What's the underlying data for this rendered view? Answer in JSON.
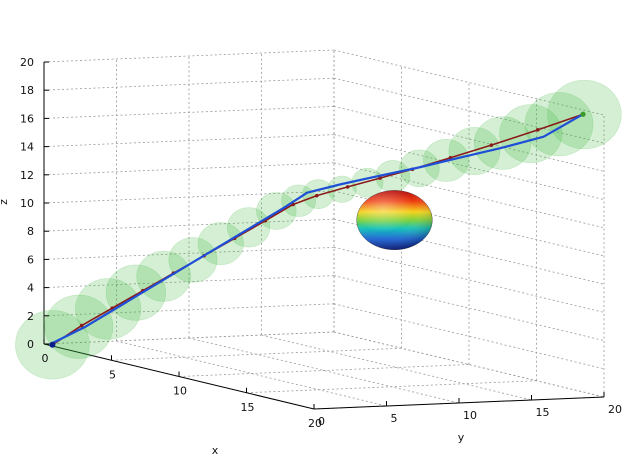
{
  "chart_data": {
    "type": "line",
    "projection": "3d",
    "grid": true,
    "xlabel": "x",
    "ylabel": "y",
    "zlabel": "z",
    "xlim": [
      0,
      20
    ],
    "ylim": [
      0,
      20
    ],
    "zlim": [
      0,
      20
    ],
    "xticks": [
      0,
      5,
      10,
      15,
      20
    ],
    "yticks": [
      0,
      5,
      10,
      15,
      20
    ],
    "zticks": [
      0,
      2,
      4,
      6,
      8,
      10,
      12,
      14,
      16,
      18,
      20
    ],
    "series": [
      {
        "role": "reference path",
        "color": "#8b1a1a",
        "marker": "circle",
        "points": [
          [
            0.3,
            0.3,
            0
          ],
          [
            1.5,
            1.2,
            1.6
          ],
          [
            2.8,
            2.1,
            3.1
          ],
          [
            4.1,
            3.0,
            4.6
          ],
          [
            5.4,
            3.9,
            6.1
          ],
          [
            6.7,
            4.8,
            7.6
          ],
          [
            8.0,
            5.7,
            9.1
          ],
          [
            9.3,
            6.6,
            10.6
          ],
          [
            10.5,
            7.4,
            12.0
          ],
          [
            11.4,
            8.2,
            12.8
          ],
          [
            12.4,
            9.4,
            13.6
          ],
          [
            13.4,
            10.7,
            14.4
          ],
          [
            14.4,
            12.0,
            15.2
          ],
          [
            15.5,
            13.6,
            16.2
          ],
          [
            16.7,
            15.3,
            17.3
          ],
          [
            18.0,
            17.3,
            18.6
          ],
          [
            19.2,
            19.3,
            19.9
          ]
        ]
      },
      {
        "role": "tracked path",
        "color": "#1f4fd6",
        "marker": "none",
        "points": [
          [
            0.2,
            0.2,
            0
          ],
          [
            1.6,
            1.3,
            1.5
          ],
          [
            3.0,
            2.3,
            3.2
          ],
          [
            4.4,
            3.3,
            4.9
          ],
          [
            5.8,
            4.3,
            6.6
          ],
          [
            7.2,
            5.3,
            8.3
          ],
          [
            8.6,
            6.3,
            10.0
          ],
          [
            10.0,
            7.3,
            11.7
          ],
          [
            10.9,
            8.0,
            12.9
          ],
          [
            12.0,
            9.3,
            13.7
          ],
          [
            13.2,
            10.8,
            14.5
          ],
          [
            14.4,
            12.4,
            15.3
          ],
          [
            15.6,
            14.1,
            16.2
          ],
          [
            16.8,
            15.9,
            17.1
          ],
          [
            18.0,
            17.7,
            18.1
          ],
          [
            19.2,
            19.3,
            19.9
          ]
        ]
      }
    ],
    "tube": {
      "color": "#3cb83c",
      "opacity": 0.22,
      "spheres": [
        {
          "c": [
            0.3,
            0.3,
            0
          ],
          "r": 2.6
        },
        {
          "c": [
            1.4,
            1.1,
            1.5
          ],
          "r": 2.4
        },
        {
          "c": [
            2.6,
            2.0,
            3.0
          ],
          "r": 2.3
        },
        {
          "c": [
            3.8,
            2.8,
            4.4
          ],
          "r": 2.1
        },
        {
          "c": [
            5.0,
            3.6,
            5.8
          ],
          "r": 1.9
        },
        {
          "c": [
            6.2,
            4.5,
            7.2
          ],
          "r": 1.7
        },
        {
          "c": [
            7.4,
            5.3,
            8.6
          ],
          "r": 1.6
        },
        {
          "c": [
            8.6,
            6.1,
            10.0
          ],
          "r": 1.5
        },
        {
          "c": [
            9.8,
            6.9,
            11.4
          ],
          "r": 1.4
        },
        {
          "c": [
            10.7,
            7.6,
            12.3
          ],
          "r": 1.2
        },
        {
          "c": [
            11.4,
            8.3,
            12.9
          ],
          "r": 1.1
        },
        {
          "c": [
            12.2,
            9.2,
            13.4
          ],
          "r": 1.0
        },
        {
          "c": [
            13.0,
            10.2,
            14.0
          ],
          "r": 1.1
        },
        {
          "c": [
            13.8,
            11.2,
            14.6
          ],
          "r": 1.2
        },
        {
          "c": [
            14.6,
            12.3,
            15.3
          ],
          "r": 1.4
        },
        {
          "c": [
            15.4,
            13.4,
            16.0
          ],
          "r": 1.6
        },
        {
          "c": [
            16.2,
            14.6,
            16.8
          ],
          "r": 1.8
        },
        {
          "c": [
            17.0,
            15.8,
            17.5
          ],
          "r": 2.0
        },
        {
          "c": [
            17.8,
            17.0,
            18.3
          ],
          "r": 2.2
        },
        {
          "c": [
            18.6,
            18.2,
            19.1
          ],
          "r": 2.4
        },
        {
          "c": [
            19.3,
            19.3,
            19.9
          ],
          "r": 2.6
        }
      ]
    },
    "obstacle": {
      "shape": "sphere",
      "center": [
        12,
        13,
        11
      ],
      "radius": 1.8,
      "colormap": "jet"
    }
  }
}
